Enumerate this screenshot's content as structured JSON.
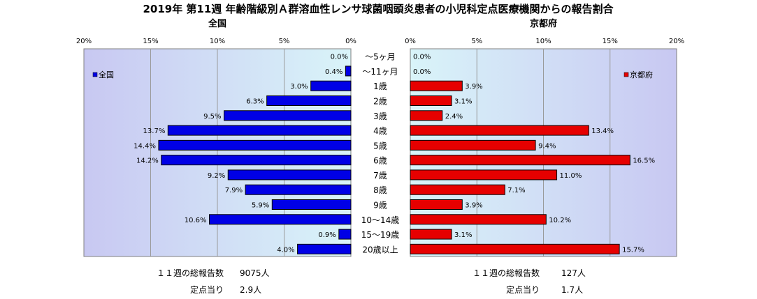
{
  "title": "2019年 第11週 年齢階級別Ａ群溶血性レンサ球菌咽頭炎患者の小児科定点医療機関からの報告割合",
  "colors": {
    "left": "#0000e6",
    "right": "#e60000",
    "plotbg_light": "#d9f4f9",
    "plotbg_dark": "#c8c8f2"
  },
  "chart_data": [
    {
      "type": "bar",
      "orientation": "horizontal",
      "subtitle": "全国",
      "legend": "全国",
      "legend_position": "top-left",
      "direction": "right-to-left",
      "xlim": [
        0,
        20
      ],
      "xticks": [
        "0%",
        "5%",
        "10%",
        "15%",
        "20%"
      ],
      "categories": [
        "～5ヶ月",
        "～11ヶ月",
        "1歳",
        "2歳",
        "3歳",
        "4歳",
        "5歳",
        "6歳",
        "7歳",
        "8歳",
        "9歳",
        "10～14歳",
        "15～19歳",
        "20歳以上"
      ],
      "values": [
        0.0,
        0.4,
        3.0,
        6.3,
        9.5,
        13.7,
        14.4,
        14.2,
        9.2,
        7.9,
        5.9,
        10.6,
        0.9,
        4.0
      ],
      "labels": [
        "0.0%",
        "0.4%",
        "3.0%",
        "6.3%",
        "9.5%",
        "13.7%",
        "14.4%",
        "14.2%",
        "9.2%",
        "7.9%",
        "5.9%",
        "10.6%",
        "0.9%",
        "4.0%"
      ],
      "grid": true
    },
    {
      "type": "bar",
      "orientation": "horizontal",
      "subtitle": "京都府",
      "legend": "京都府",
      "legend_position": "top-right",
      "direction": "left-to-right",
      "xlim": [
        0,
        20
      ],
      "xticks": [
        "0%",
        "5%",
        "10%",
        "15%",
        "20%"
      ],
      "categories": [
        "～5ヶ月",
        "～11ヶ月",
        "1歳",
        "2歳",
        "3歳",
        "4歳",
        "5歳",
        "6歳",
        "7歳",
        "8歳",
        "9歳",
        "10～14歳",
        "15～19歳",
        "20歳以上"
      ],
      "values": [
        0.0,
        0.0,
        3.9,
        3.1,
        2.4,
        13.4,
        9.4,
        16.5,
        11.0,
        7.1,
        3.9,
        10.2,
        3.1,
        15.7
      ],
      "labels": [
        "0.0%",
        "0.0%",
        "3.9%",
        "3.1%",
        "2.4%",
        "13.4%",
        "9.4%",
        "16.5%",
        "11.0%",
        "7.1%",
        "3.9%",
        "10.2%",
        "3.1%",
        "15.7%"
      ],
      "grid": true
    }
  ],
  "footer": {
    "left": [
      {
        "label": "１１週の総報告数",
        "value": "9075人"
      },
      {
        "label": "定点当り",
        "value": "2.9人"
      }
    ],
    "right": [
      {
        "label": "１１週の総報告数",
        "value": "127人"
      },
      {
        "label": "定点当り",
        "value": "1.7人"
      }
    ]
  }
}
